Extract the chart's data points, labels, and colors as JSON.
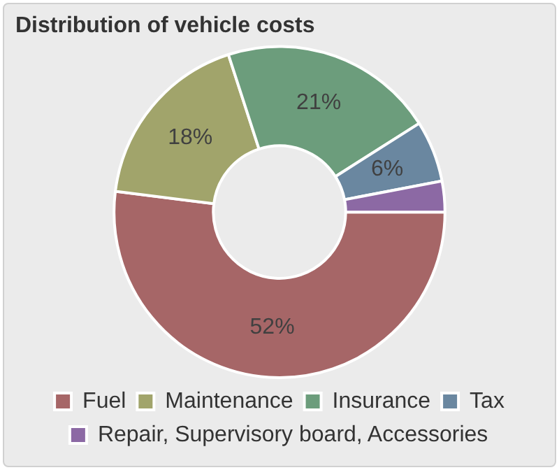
{
  "chart_data": {
    "type": "donut",
    "title": "Distribution of vehicle costs",
    "categories": [
      "Fuel",
      "Maintenance",
      "Insurance",
      "Tax",
      "Repair, Supervisory board, Accessories"
    ],
    "values": [
      52,
      18,
      21,
      6,
      3
    ],
    "colors": [
      "#a66667",
      "#a1a46b",
      "#6c9d7c",
      "#6a87a0",
      "#8c69a4"
    ],
    "value_labels": [
      "52%",
      "18%",
      "21%",
      "6%",
      null
    ],
    "legend": "bottom"
  }
}
